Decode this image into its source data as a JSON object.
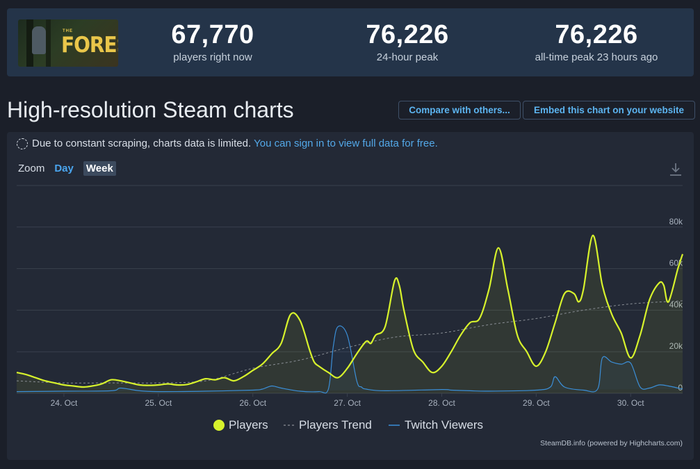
{
  "game": {
    "logo_small": "THE",
    "logo_text": "FOREST"
  },
  "stats": [
    {
      "value": "67,770",
      "label": "players right now"
    },
    {
      "value": "76,226",
      "label": "24-hour peak"
    },
    {
      "value": "76,226",
      "label": "all-time peak 23 hours ago"
    }
  ],
  "title": "High-resolution Steam charts",
  "buttons": {
    "compare": "Compare with others...",
    "embed": "Embed this chart on your website"
  },
  "notice": {
    "text": "Due to constant scraping, charts data is limited.",
    "link": "You can sign in to view full data for free."
  },
  "zoom": {
    "label": "Zoom",
    "day": "Day",
    "week": "Week"
  },
  "credit": "SteamDB.info (powered by Highcharts.com)",
  "colors": {
    "players": "#d7f22c",
    "trend": "#8a8f96",
    "twitch": "#3b8fd8",
    "accent": "#53a8e8"
  },
  "icons": {
    "notice": "dashed-circle-icon",
    "download": "download-icon"
  },
  "chart_data": {
    "type": "line",
    "x_unit": "days",
    "x_ticks": [
      "24. Oct",
      "25. Oct",
      "26. Oct",
      "27. Oct",
      "28. Oct",
      "29. Oct",
      "30. Oct"
    ],
    "x_tick_positions": [
      24,
      25,
      26,
      27,
      28,
      29,
      30
    ],
    "xlim": [
      23.5,
      30.55
    ],
    "y_ticks": [
      "0",
      "20k",
      "40k",
      "60k",
      "80k"
    ],
    "y_tick_values": [
      0,
      20000,
      40000,
      60000,
      80000
    ],
    "ylim": [
      0,
      100000
    ],
    "grid": true,
    "legend_position": "bottom-center",
    "series": [
      {
        "name": "Players",
        "x": [
          23.5,
          23.6,
          23.7,
          23.8,
          23.9,
          24.0,
          24.1,
          24.2,
          24.3,
          24.4,
          24.5,
          24.6,
          24.7,
          24.8,
          24.9,
          25.0,
          25.1,
          25.2,
          25.3,
          25.4,
          25.5,
          25.6,
          25.7,
          25.8,
          25.9,
          26.0,
          26.1,
          26.2,
          26.3,
          26.4,
          26.5,
          26.6,
          26.65,
          26.7,
          26.8,
          26.9,
          27.0,
          27.1,
          27.2,
          27.25,
          27.3,
          27.4,
          27.5,
          27.55,
          27.6,
          27.7,
          27.8,
          27.9,
          28.0,
          28.1,
          28.2,
          28.3,
          28.4,
          28.5,
          28.6,
          28.7,
          28.8,
          28.9,
          29.0,
          29.1,
          29.2,
          29.3,
          29.4,
          29.45,
          29.5,
          29.6,
          29.7,
          29.8,
          29.9,
          30.0,
          30.1,
          30.2,
          30.3,
          30.35,
          30.4,
          30.5,
          30.55
        ],
        "y": [
          10000,
          9000,
          7500,
          6000,
          5000,
          4000,
          3500,
          3000,
          3500,
          4500,
          6500,
          6000,
          5000,
          4000,
          3800,
          4000,
          4500,
          4000,
          4200,
          5500,
          7000,
          6500,
          7500,
          6000,
          8000,
          11000,
          14000,
          19000,
          24000,
          38000,
          35000,
          21000,
          15000,
          13000,
          10000,
          7500,
          12000,
          19000,
          25000,
          24000,
          28000,
          32000,
          54000,
          52000,
          40000,
          21000,
          15000,
          10000,
          13000,
          20000,
          28000,
          34000,
          36000,
          50000,
          70000,
          50000,
          28000,
          20000,
          13000,
          20000,
          34000,
          48000,
          48000,
          44000,
          50000,
          76000,
          52000,
          38000,
          29000,
          17000,
          28000,
          45000,
          53000,
          52000,
          44000,
          60000,
          67000
        ]
      },
      {
        "name": "Players Trend",
        "x": [
          23.5,
          24.0,
          24.5,
          25.0,
          25.5,
          26.0,
          26.5,
          27.0,
          27.5,
          28.0,
          28.5,
          29.0,
          29.5,
          30.0,
          30.55
        ],
        "y": [
          6000,
          5000,
          5000,
          5000,
          6000,
          12000,
          16000,
          22000,
          27000,
          29000,
          33000,
          36000,
          40000,
          43000,
          44500
        ]
      },
      {
        "name": "Twitch Viewers",
        "x": [
          23.5,
          24.0,
          24.5,
          24.6,
          24.8,
          25.0,
          25.5,
          26.0,
          26.1,
          26.2,
          26.3,
          26.5,
          26.7,
          26.8,
          26.85,
          26.9,
          27.0,
          27.1,
          27.15,
          27.2,
          27.4,
          28.0,
          28.1,
          28.3,
          28.5,
          29.0,
          29.15,
          29.2,
          29.3,
          29.5,
          29.65,
          29.7,
          29.8,
          29.9,
          30.0,
          30.1,
          30.2,
          30.3,
          30.4,
          30.55
        ],
        "y": [
          800,
          1000,
          1200,
          2500,
          1200,
          800,
          1000,
          1500,
          2000,
          3500,
          2500,
          1000,
          800,
          2000,
          22000,
          32000,
          28000,
          6000,
          3000,
          2000,
          1200,
          1800,
          1500,
          1200,
          1000,
          1500,
          3000,
          8000,
          3000,
          1500,
          2000,
          17000,
          15000,
          14000,
          14500,
          3000,
          2500,
          4000,
          3500,
          2000
        ]
      }
    ]
  }
}
